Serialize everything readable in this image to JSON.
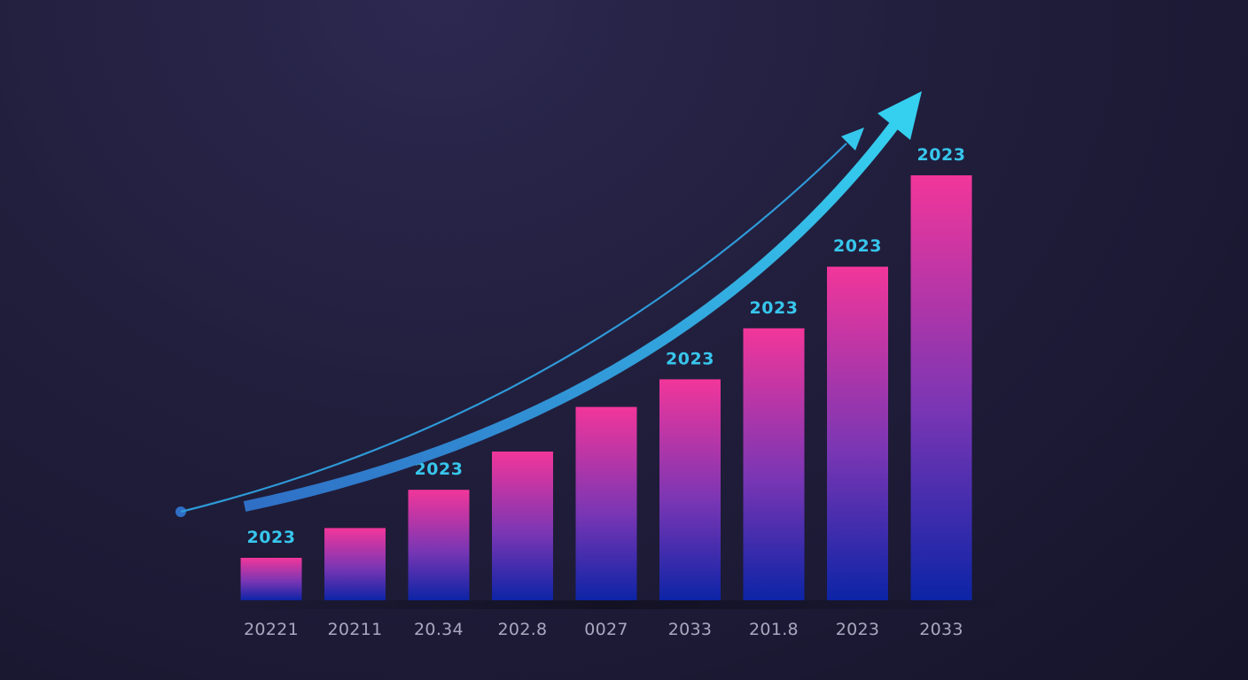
{
  "chart_data": {
    "type": "bar",
    "title": "",
    "xlabel": "",
    "ylabel": "",
    "categories": [
      "20221",
      "20211",
      "20.34",
      "202.8",
      "0027",
      "2033",
      "201.8",
      "2023",
      "2033"
    ],
    "values": [
      10,
      17,
      26,
      35,
      45.5,
      52,
      64,
      78.5,
      100
    ],
    "value_labels": [
      "2023",
      "",
      "2023",
      "",
      "",
      "2023",
      "2023",
      "2023",
      "2023"
    ],
    "ylim": [
      0,
      100
    ],
    "grid": false,
    "legend": "none",
    "trend_arrow": true
  },
  "colors": {
    "background": "#1c1a33",
    "bar_top": "#f2369a",
    "bar_middle": "#7a36b4",
    "bar_bottom": "#0c24a6",
    "arrow": "#35c8ec",
    "value_label": "#37c6ec",
    "tick_label": "#a9a8bf"
  }
}
